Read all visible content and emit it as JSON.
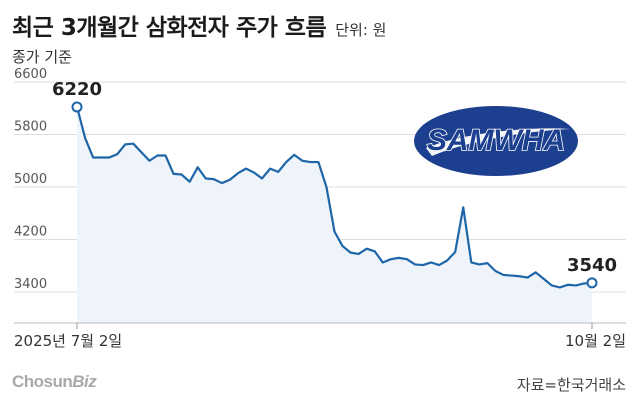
{
  "header": {
    "title": "최근 3개월간 삼화전자 주가 흐름",
    "unit": "단위: 원",
    "subtitle": "종가 기준"
  },
  "logo": {
    "text": "SAMWHA"
  },
  "footer": {
    "brand_main": "Chosun",
    "brand_sub": "Biz",
    "source": "자료=한국거래소"
  },
  "colors": {
    "line": "#1f66a8",
    "area": "#eef4fa",
    "grid": "#dddddd",
    "logo_navy": "#1d3f8f"
  },
  "chart_data": {
    "type": "area",
    "title": "최근 3개월간 삼화전자 주가 흐름",
    "ylabel": "원",
    "ylim": [
      3150,
      6700
    ],
    "yticks": [
      3400,
      4200,
      5000,
      5800,
      6600
    ],
    "ytick_labels": [
      "3400",
      "4200",
      "5000",
      "5800",
      "6600"
    ],
    "xtick_labels": [
      "2025년 7월 2일",
      "10월 2일"
    ],
    "annotations": [
      {
        "label": "6220",
        "point": "first"
      },
      {
        "label": "3540",
        "point": "last"
      }
    ],
    "grid": true,
    "legend": "none",
    "x_start": "2025-07-02",
    "x_end": "2025-10-02",
    "series": [
      {
        "values": [
          6220,
          5750,
          5450,
          5450,
          5450,
          5500,
          5650,
          5660,
          5530,
          5400,
          5480,
          5480,
          5200,
          5190,
          5080,
          5300,
          5130,
          5120,
          5060,
          5110,
          5210,
          5280,
          5220,
          5130,
          5280,
          5230,
          5380,
          5490,
          5400,
          5380,
          5380,
          5000,
          4320,
          4100,
          4000,
          3980,
          4060,
          4020,
          3850,
          3900,
          3920,
          3900,
          3820,
          3810,
          3850,
          3810,
          3880,
          4010,
          4690,
          3850,
          3820,
          3840,
          3720,
          3660,
          3650,
          3640,
          3620,
          3700,
          3600,
          3500,
          3470,
          3510,
          3500,
          3530,
          3540
        ]
      }
    ]
  }
}
